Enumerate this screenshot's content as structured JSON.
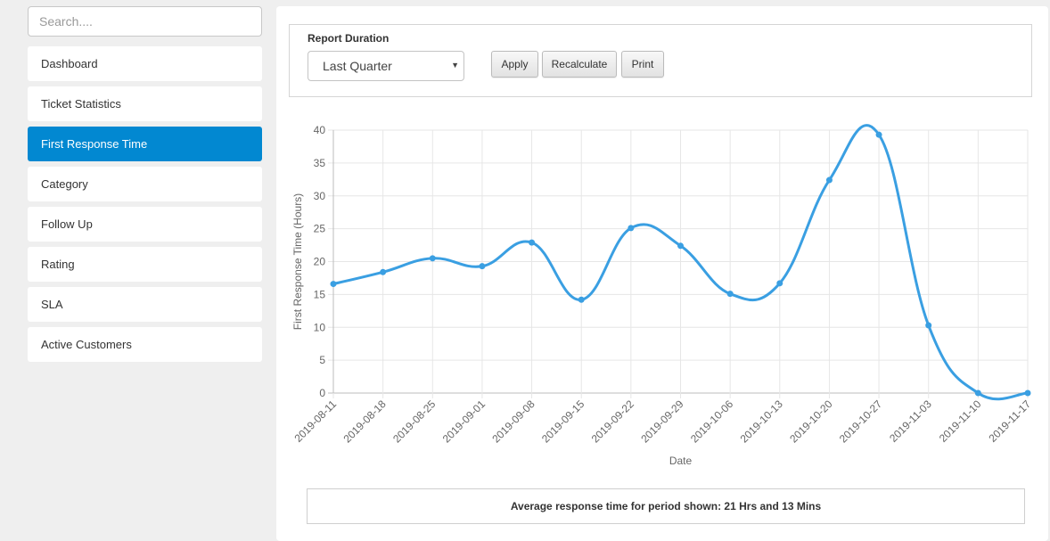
{
  "sidebar": {
    "search_placeholder": "Search....",
    "items": [
      {
        "label": "Dashboard",
        "active": false
      },
      {
        "label": "Ticket Statistics",
        "active": false
      },
      {
        "label": "First Response Time",
        "active": true
      },
      {
        "label": "Category",
        "active": false
      },
      {
        "label": "Follow Up",
        "active": false
      },
      {
        "label": "Rating",
        "active": false
      },
      {
        "label": "SLA",
        "active": false
      },
      {
        "label": "Active Customers",
        "active": false
      }
    ]
  },
  "controls": {
    "duration_label": "Report Duration",
    "duration_value": "Last Quarter",
    "apply_label": "Apply",
    "recalculate_label": "Recalculate",
    "print_label": "Print"
  },
  "summary": {
    "prefix": "Average response time for period shown: ",
    "hours": "21",
    "hours_unit": " Hrs and ",
    "minutes": "13",
    "minutes_unit": " Mins"
  },
  "colors": {
    "accent": "#0288d1",
    "line": "#3a9fe2"
  },
  "chart_data": {
    "type": "line",
    "xlabel": "Date",
    "ylabel": "First Response Time (Hours)",
    "ylim": [
      0,
      40
    ],
    "yticks": [
      0,
      5,
      10,
      15,
      20,
      25,
      30,
      35,
      40
    ],
    "grid": true,
    "categories": [
      "2019-08-11",
      "2019-08-18",
      "2019-08-25",
      "2019-09-01",
      "2019-09-08",
      "2019-09-15",
      "2019-09-22",
      "2019-09-29",
      "2019-10-06",
      "2019-10-13",
      "2019-10-20",
      "2019-10-27",
      "2019-11-03",
      "2019-11-10",
      "2019-11-17"
    ],
    "values": [
      16.6,
      18.4,
      20.5,
      19.3,
      22.9,
      14.2,
      25.1,
      22.4,
      15.1,
      16.7,
      32.4,
      39.3,
      10.3,
      0,
      0
    ]
  }
}
